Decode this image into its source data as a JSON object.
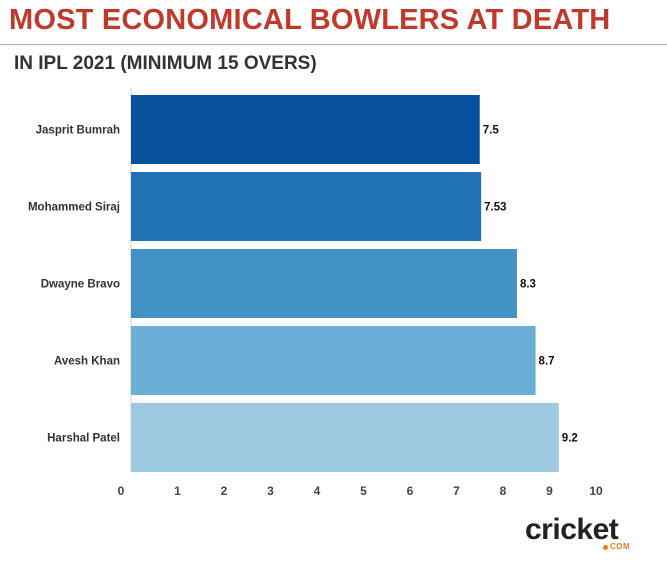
{
  "header": {
    "title": "MOST ECONOMICAL BOWLERS AT DEATH",
    "subtitle": "IN IPL 2021 (MINIMUM 15 OVERS)"
  },
  "logo": {
    "main": "cricket",
    "sub": "COM"
  },
  "colors": {
    "title": "#c0392b",
    "bars": [
      "#08519c",
      "#2171b5",
      "#4292c6",
      "#6baed6",
      "#9ecae1"
    ],
    "logo_accent": "#e67e22"
  },
  "chart_data": {
    "type": "bar",
    "orientation": "horizontal",
    "categories": [
      "Jasprit Bumrah",
      "Mohammed Siraj",
      "Dwayne Bravo",
      "Avesh Khan",
      "Harshal Patel"
    ],
    "values": [
      7.5,
      7.53,
      8.3,
      8.7,
      9.2
    ],
    "data_labels": [
      "7.5",
      "7.53",
      "8.3",
      "8.7",
      "9.2"
    ],
    "xticks": [
      0,
      1,
      2,
      3,
      4,
      5,
      6,
      7,
      8,
      9,
      10
    ],
    "xlim": [
      0,
      10
    ],
    "xlabel": "",
    "ylabel": "",
    "grid": false,
    "legend": "none"
  }
}
